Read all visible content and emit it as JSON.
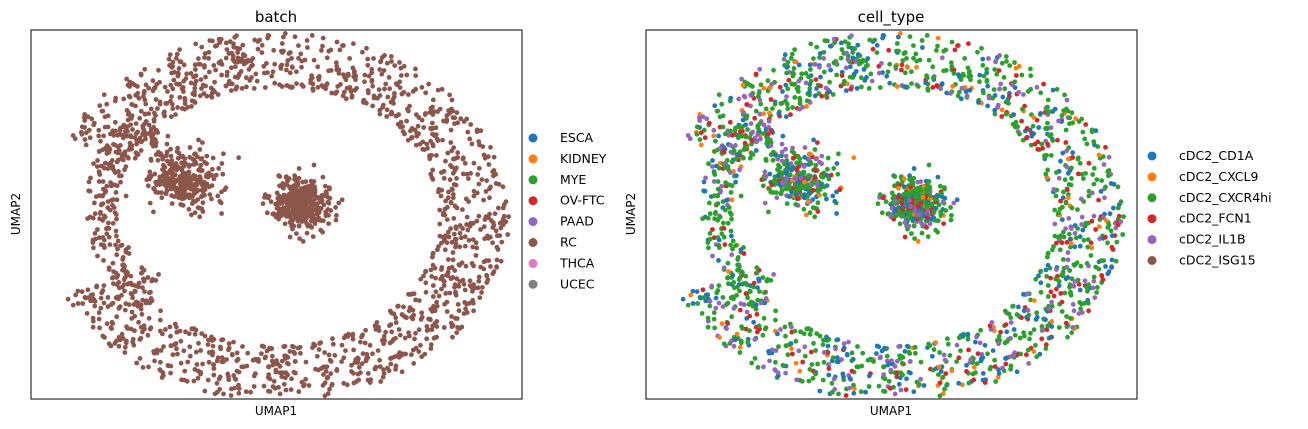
{
  "chart_data": [
    {
      "type": "scatter",
      "title": "batch",
      "xlabel": "UMAP1",
      "ylabel": "UMAP2",
      "xlim": [
        -9.8,
        9.8
      ],
      "ylim": [
        -7.6,
        7.2
      ],
      "grid": false,
      "legend_position": "outside-right",
      "legend": [
        {
          "label": "ESCA",
          "color": "#1f77b4"
        },
        {
          "label": "KIDNEY",
          "color": "#ff7f0e"
        },
        {
          "label": "MYE",
          "color": "#2ca02c"
        },
        {
          "label": "OV-FTC",
          "color": "#d62728"
        },
        {
          "label": "PAAD",
          "color": "#9467bd"
        },
        {
          "label": "RC",
          "color": "#8c564b"
        },
        {
          "label": "THCA",
          "color": "#e377c2"
        },
        {
          "label": "UCEC",
          "color": "#7f7f7f"
        }
      ],
      "series": [
        {
          "name": "RC",
          "color": "#8c564b",
          "weight": 1.0
        }
      ]
    },
    {
      "type": "scatter",
      "title": "cell_type",
      "xlabel": "UMAP1",
      "ylabel": "UMAP2",
      "xlim": [
        -9.8,
        9.8
      ],
      "ylim": [
        -7.6,
        7.2
      ],
      "grid": false,
      "legend_position": "outside-right",
      "legend": [
        {
          "label": "cDC2_CD1A",
          "color": "#1f77b4"
        },
        {
          "label": "cDC2_CXCL9",
          "color": "#ff7f0e"
        },
        {
          "label": "cDC2_CXCR4hi",
          "color": "#2ca02c"
        },
        {
          "label": "cDC2_FCN1",
          "color": "#d62728"
        },
        {
          "label": "cDC2_IL1B",
          "color": "#9467bd"
        },
        {
          "label": "cDC2_ISG15",
          "color": "#8c564b"
        }
      ],
      "series": [
        {
          "name": "cDC2_CXCR4hi",
          "color": "#2ca02c",
          "weight": 0.5
        },
        {
          "name": "cDC2_CD1A",
          "color": "#1f77b4",
          "weight": 0.18
        },
        {
          "name": "cDC2_IL1B",
          "color": "#9467bd",
          "weight": 0.15
        },
        {
          "name": "cDC2_FCN1",
          "color": "#d62728",
          "weight": 0.12
        },
        {
          "name": "cDC2_CXCL9",
          "color": "#ff7f0e",
          "weight": 0.05
        }
      ]
    }
  ],
  "point_cloud": {
    "n_points": 2300,
    "clusters": [
      {
        "kind": "ring",
        "cx": 0.0,
        "cy": -0.3,
        "rx": 7.9,
        "ry": 6.3,
        "thickness": 1.25,
        "weight": 0.6,
        "gap_angle_deg": 180,
        "gap_width_deg": 25
      },
      {
        "kind": "blob",
        "cx": -3.7,
        "cy": 1.2,
        "sx": 1.0,
        "sy": 0.85,
        "weight": 0.14
      },
      {
        "kind": "blob",
        "cx": 1.0,
        "cy": 0.2,
        "sx": 0.85,
        "sy": 0.75,
        "weight": 0.16
      },
      {
        "kind": "arc",
        "cx": -4.3,
        "cy": 0.1,
        "r": 3.0,
        "weight": 0.1
      }
    ]
  }
}
